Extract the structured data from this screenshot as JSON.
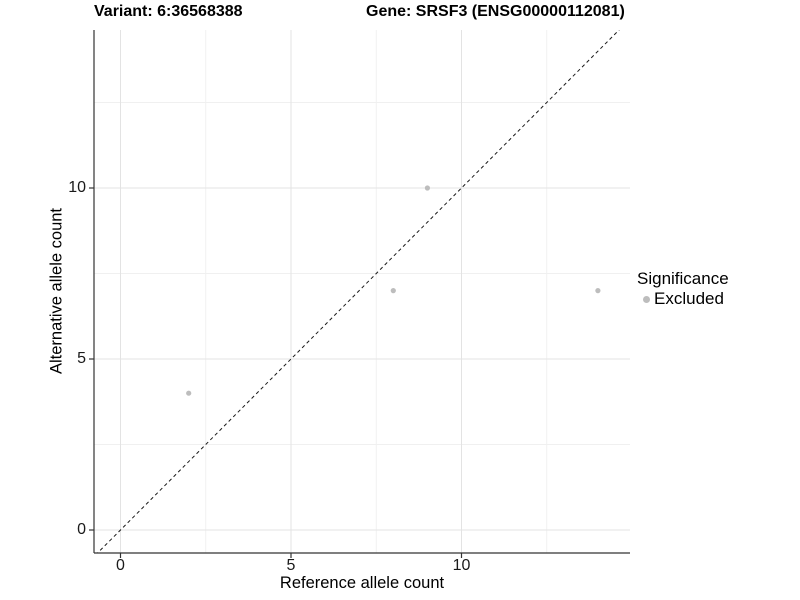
{
  "colors": {
    "background": "#ffffff",
    "grid_major": "#e3e3e3",
    "grid_minor": "#f0f0f0",
    "axis_line": "#333333",
    "tick_mark": "#333333",
    "text": "#000000",
    "tick_text": "#1a1a1a",
    "point": "#bdbdbd",
    "identity_line": "#1a1a1a"
  },
  "chart_data": {
    "type": "scatter",
    "titles": {
      "left": "Variant: 6:36568388",
      "right": "Gene: SRSF3 (ENSG00000112081)"
    },
    "xlabel": "Reference allele count",
    "ylabel": "Alternative allele count",
    "xticks": [
      0,
      5,
      10
    ],
    "yticks": [
      0,
      5,
      10
    ],
    "minor_ticks": [
      2.5,
      7.5,
      12.5
    ],
    "xlim": [
      -0.8,
      14.9
    ],
    "ylim": [
      -0.8,
      14.9
    ],
    "grid": "on",
    "identity_line": {
      "slope": 1,
      "intercept": 0,
      "style": "dashed"
    },
    "series": [
      {
        "name": "Excluded",
        "color": "#bdbdbd",
        "points": [
          {
            "x": 2,
            "y": 4
          },
          {
            "x": 8,
            "y": 7
          },
          {
            "x": 9,
            "y": 10
          },
          {
            "x": 14,
            "y": 7
          }
        ]
      }
    ],
    "legend": {
      "title": "Significance",
      "position": "right",
      "entries": [
        {
          "label": "Excluded",
          "color": "#bdbdbd"
        }
      ]
    }
  }
}
